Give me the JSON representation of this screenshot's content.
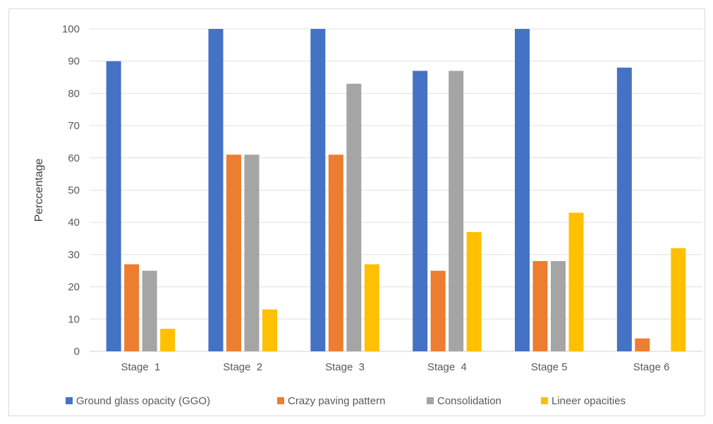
{
  "chart_data": {
    "type": "bar",
    "title": "",
    "xlabel": "",
    "ylabel": "Perccentage",
    "ylim": [
      0,
      100
    ],
    "yticks": [
      0,
      10,
      20,
      30,
      40,
      50,
      60,
      70,
      80,
      90,
      100
    ],
    "grid": true,
    "legend_position": "bottom",
    "categories": [
      "Stage  1",
      "Stage  2",
      "Stage  3",
      "Stage  4",
      "Stage 5",
      "Stage 6"
    ],
    "series": [
      {
        "name": "Ground glass opacity (GGO)",
        "color": "#4472c4",
        "values": [
          90,
          100,
          100,
          87,
          100,
          88
        ]
      },
      {
        "name": "Crazy paving pattern",
        "color": "#ed7d31",
        "values": [
          27,
          61,
          61,
          25,
          28,
          4
        ]
      },
      {
        "name": "Consolidation",
        "color": "#a5a5a5",
        "values": [
          25,
          61,
          83,
          87,
          28,
          0
        ]
      },
      {
        "name": "Lineer opacities",
        "color": "#ffc000",
        "values": [
          7,
          13,
          27,
          37,
          43,
          32
        ]
      }
    ]
  }
}
